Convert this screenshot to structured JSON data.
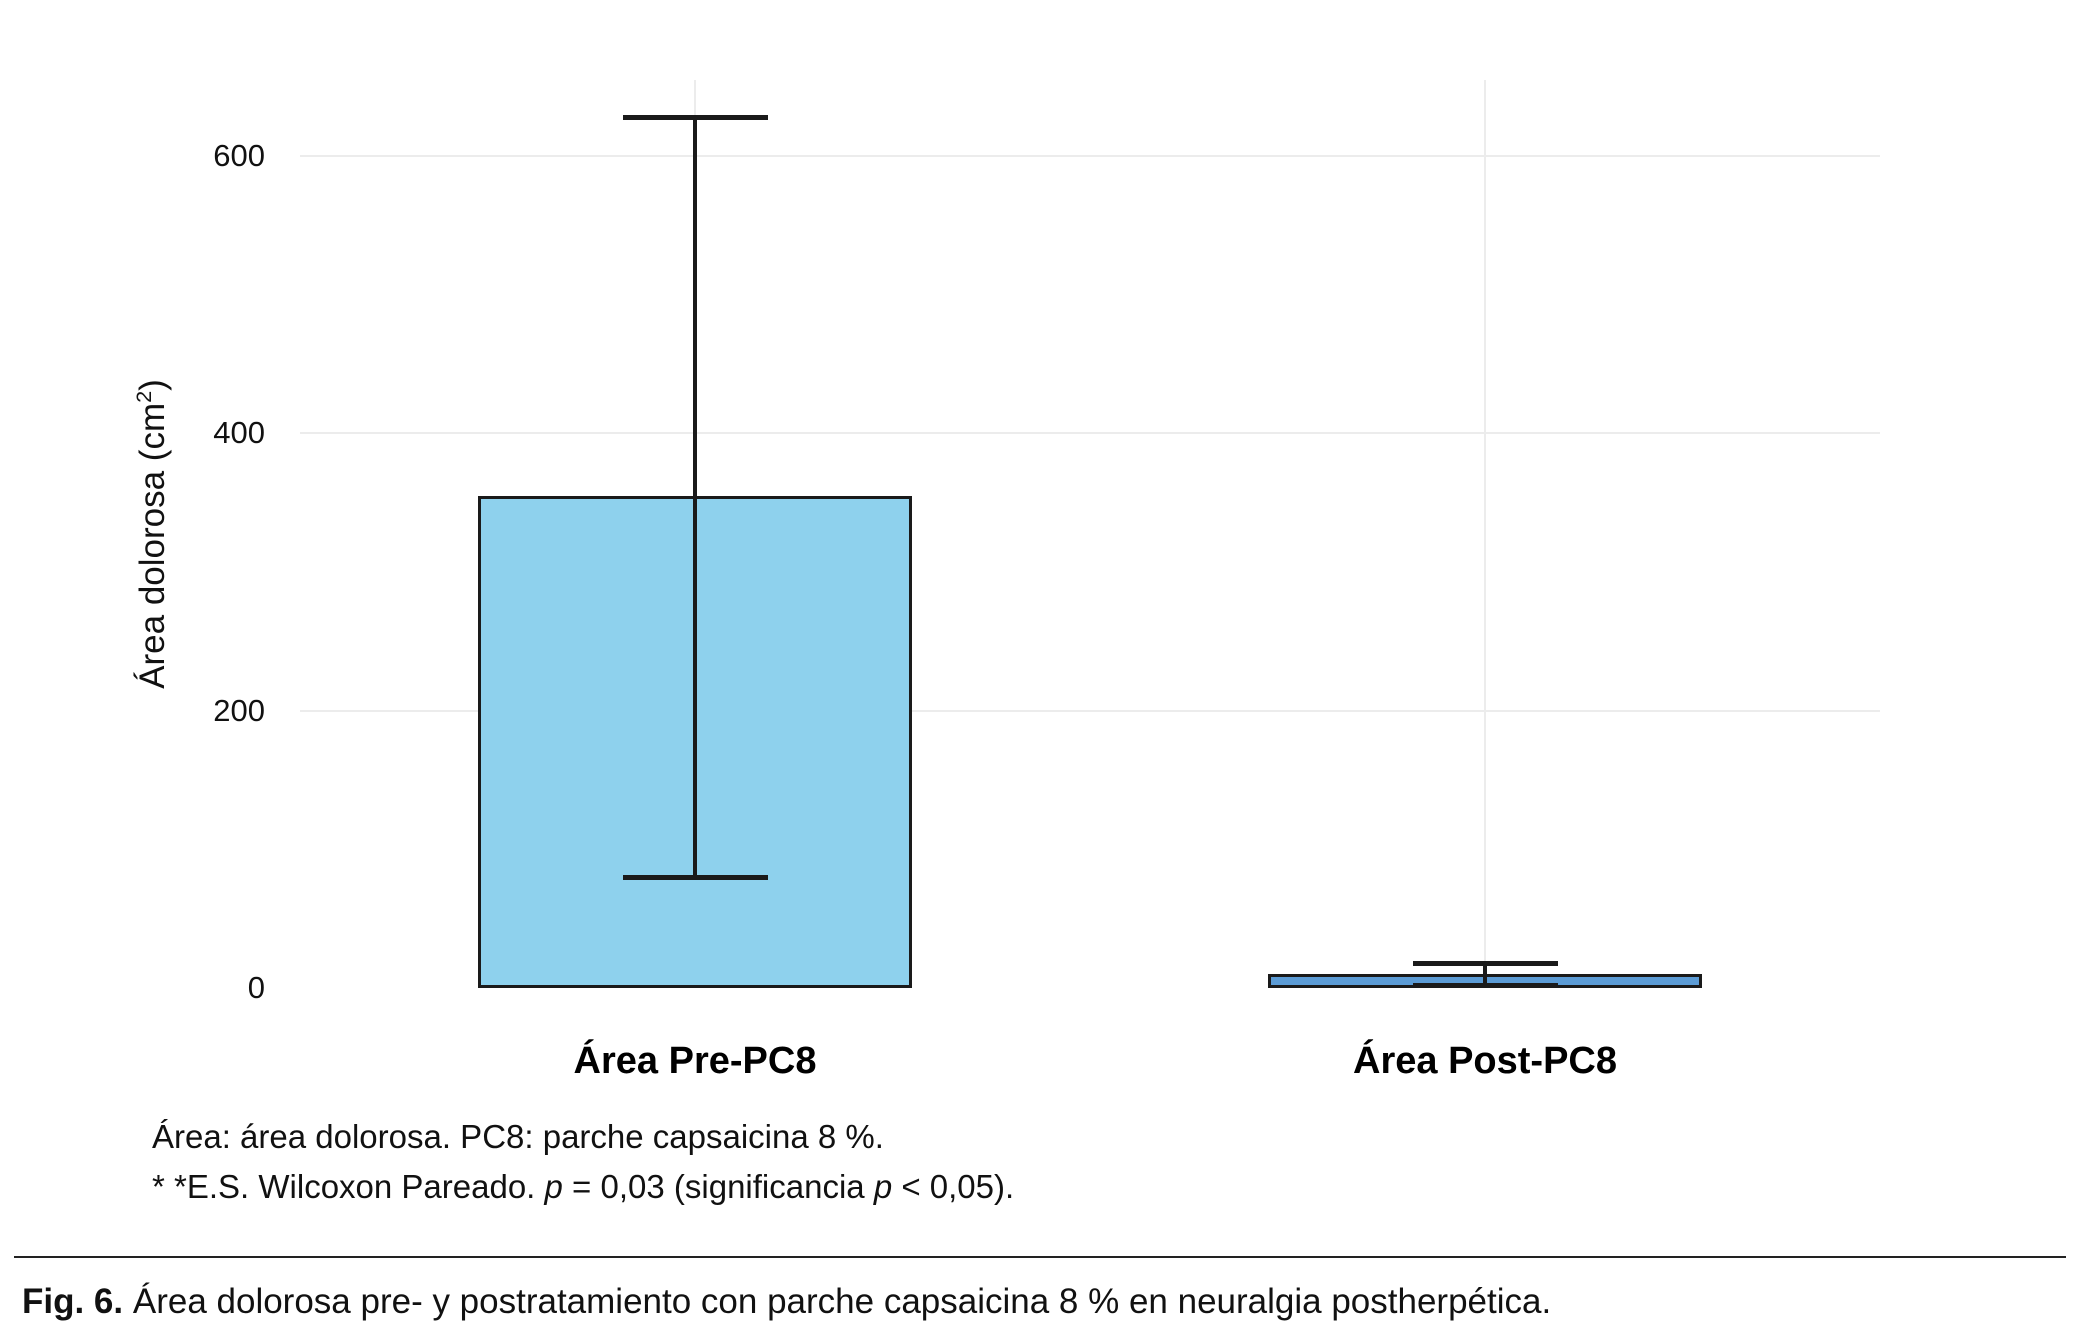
{
  "chart_data": {
    "type": "bar",
    "categories": [
      "Área Pre-PC8",
      "Área Post-PC8"
    ],
    "values": [
      355,
      10
    ],
    "error_bars": [
      {
        "low": 80,
        "high": 628
      },
      {
        "low": 2,
        "high": 18
      }
    ],
    "title": "",
    "xlabel": "",
    "ylabel": "Área dolorosa (cm²)",
    "ylabel_parts": [
      "Área dolorosa (cm",
      "2",
      ")"
    ],
    "yticks": [
      0,
      200,
      400,
      600
    ],
    "ylim": [
      0,
      655
    ],
    "grid": true,
    "legend": "none",
    "bar_colors": [
      "#8ED1ED",
      "#5B9BD5"
    ],
    "bar_border_color": "#1a1a1a",
    "gridline_color": "#ececec"
  },
  "notes": {
    "line1": "Área: área dolorosa. PC8: parche capsaicina 8 %.",
    "line2": "* *E.S. Wilcoxon Pareado. p = 0,03 (significancia p < 0,05).",
    "line2_parts": [
      "* *E.S. Wilcoxon Pareado. ",
      "p",
      " = 0,03 (significancia ",
      "p",
      " < 0,05)."
    ]
  },
  "caption": {
    "label": "Fig. 6.",
    "text": "Área dolorosa pre- y postratamiento con parche capsaicina 8 % en neuralgia postherpética."
  }
}
